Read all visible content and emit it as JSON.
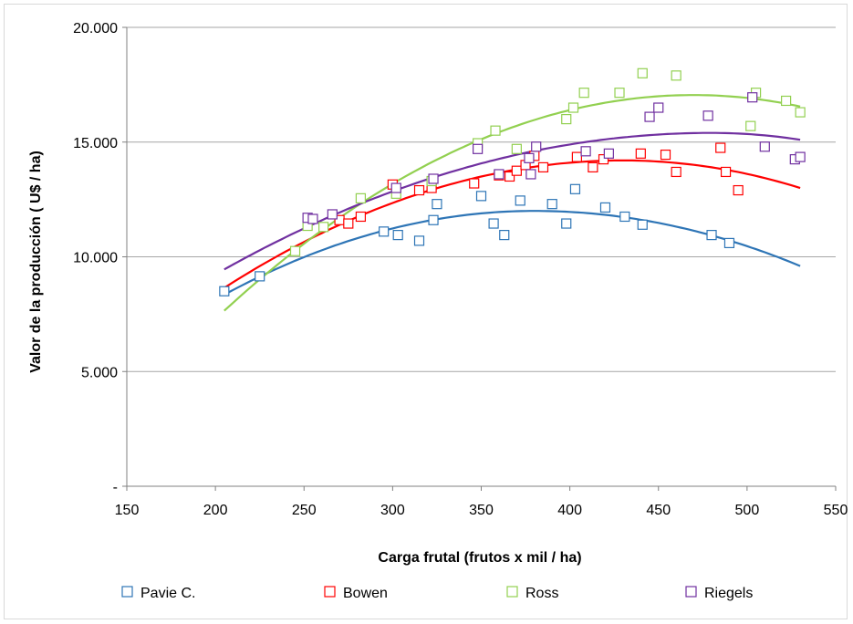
{
  "chart_data": {
    "type": "scatter",
    "title": "",
    "xlabel": "Carga frutal (frutos x mil / ha)",
    "ylabel": "Valor de la producción ( U$ / ha)",
    "xlim": [
      150,
      550
    ],
    "ylim": [
      0,
      20000
    ],
    "x_ticks": [
      150,
      200,
      250,
      300,
      350,
      400,
      450,
      500,
      550
    ],
    "x_tick_labels": [
      "150",
      "200",
      "250",
      "300",
      "350",
      "400",
      "450",
      "500",
      "550"
    ],
    "y_ticks": [
      0,
      5000,
      10000,
      15000,
      20000
    ],
    "y_tick_labels": [
      "-",
      "5.000",
      "10.000",
      "15.000",
      "20.000"
    ],
    "grid": "horizontal",
    "legend_position": "bottom",
    "series": [
      {
        "name": "Pavie C.",
        "color": "#2e75b6",
        "points": [
          [
            205,
            8500
          ],
          [
            225,
            9150
          ],
          [
            295,
            11100
          ],
          [
            303,
            10950
          ],
          [
            315,
            10700
          ],
          [
            323,
            11600
          ],
          [
            325,
            12300
          ],
          [
            350,
            12650
          ],
          [
            357,
            11450
          ],
          [
            363,
            10950
          ],
          [
            372,
            12450
          ],
          [
            390,
            12300
          ],
          [
            398,
            11450
          ],
          [
            403,
            12950
          ],
          [
            420,
            12150
          ],
          [
            431,
            11750
          ],
          [
            441,
            11400
          ],
          [
            480,
            10950
          ],
          [
            490,
            10600
          ]
        ],
        "trend": {
          "x0": 205,
          "x1": 530,
          "peak_x": 380,
          "peak_y": 12000,
          "y_at_x0": 8350,
          "y_at_x1": 9600
        }
      },
      {
        "name": "Bowen",
        "color": "#ff0000",
        "points": [
          [
            270,
            11600
          ],
          [
            275,
            11450
          ],
          [
            282,
            11750
          ],
          [
            300,
            13150
          ],
          [
            315,
            12900
          ],
          [
            322,
            13000
          ],
          [
            346,
            13200
          ],
          [
            360,
            13550
          ],
          [
            366,
            13500
          ],
          [
            370,
            13750
          ],
          [
            375,
            14000
          ],
          [
            380,
            14400
          ],
          [
            385,
            13900
          ],
          [
            404,
            14350
          ],
          [
            413,
            13900
          ],
          [
            419,
            14250
          ],
          [
            440,
            14500
          ],
          [
            454,
            14450
          ],
          [
            460,
            13700
          ],
          [
            485,
            14750
          ],
          [
            488,
            13700
          ],
          [
            495,
            12900
          ]
        ],
        "trend": {
          "x0": 205,
          "x1": 530,
          "peak_x": 430,
          "peak_y": 14200,
          "y_at_x0": 8650,
          "y_at_x1": 13000
        }
      },
      {
        "name": "Ross",
        "color": "#92d050",
        "points": [
          [
            245,
            10250
          ],
          [
            252,
            11350
          ],
          [
            261,
            11300
          ],
          [
            282,
            12550
          ],
          [
            302,
            12750
          ],
          [
            322,
            13300
          ],
          [
            348,
            14950
          ],
          [
            358,
            15500
          ],
          [
            370,
            14700
          ],
          [
            398,
            16000
          ],
          [
            402,
            16500
          ],
          [
            408,
            17150
          ],
          [
            428,
            17150
          ],
          [
            441,
            18000
          ],
          [
            460,
            17900
          ],
          [
            502,
            15700
          ],
          [
            505,
            17150
          ],
          [
            522,
            16800
          ],
          [
            530,
            16300
          ]
        ],
        "trend": {
          "x0": 205,
          "x1": 530,
          "peak_x": 470,
          "peak_y": 17050,
          "y_at_x0": 7650,
          "y_at_x1": 16550
        }
      },
      {
        "name": "Riegels",
        "color": "#7030a0",
        "points": [
          [
            252,
            11700
          ],
          [
            255,
            11650
          ],
          [
            266,
            11850
          ],
          [
            302,
            13000
          ],
          [
            323,
            13400
          ],
          [
            348,
            14700
          ],
          [
            360,
            13600
          ],
          [
            377,
            14300
          ],
          [
            378,
            13600
          ],
          [
            381,
            14800
          ],
          [
            409,
            14600
          ],
          [
            422,
            14500
          ],
          [
            445,
            16100
          ],
          [
            450,
            16500
          ],
          [
            478,
            16150
          ],
          [
            503,
            16950
          ],
          [
            510,
            14800
          ],
          [
            527,
            14250
          ],
          [
            530,
            14350
          ]
        ],
        "trend": {
          "x0": 205,
          "x1": 530,
          "peak_x": 480,
          "peak_y": 15400,
          "y_at_x0": 9450,
          "y_at_x1": 15100
        }
      }
    ]
  }
}
